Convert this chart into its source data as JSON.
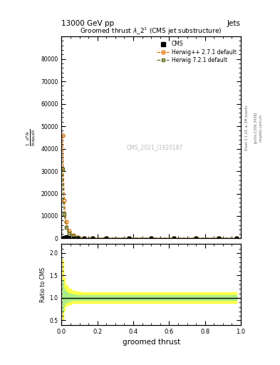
{
  "title": "13000 GeV pp",
  "right_title": "Jets",
  "plot_title": "Groomed thrust $\\lambda\\_2^1$ (CMS jet substructure)",
  "cms_watermark": "CMS_2021_I1920187",
  "rivet_label": "Rivet 3.1.10, ≥ 3M events",
  "arxiv_label": "[arXiv:1306.3436]",
  "mcplots_label": "mcplots.cern.ch",
  "xlabel": "groomed thrust",
  "ylabel_top": "$\\frac{1}{N}\\frac{d^2N}{dp_T\\,d\\lambda}$",
  "ylabel_ratio": "Ratio to CMS",
  "xlim": [
    0.0,
    1.0
  ],
  "ylim_main": [
    0,
    90000
  ],
  "ylim_ratio": [
    0.4,
    2.2
  ],
  "main_yticks": [
    0,
    10000,
    20000,
    30000,
    40000,
    50000,
    60000,
    70000,
    80000
  ],
  "ratio_yticks": [
    0.5,
    1.0,
    1.5,
    2.0
  ],
  "x_data": [
    0.005,
    0.015,
    0.025,
    0.04,
    0.065,
    0.09,
    0.125,
    0.175,
    0.25,
    0.375,
    0.5,
    0.625,
    0.75,
    0.875,
    0.975
  ],
  "herwig_pp_y": [
    46000,
    17000,
    7500,
    3200,
    1300,
    600,
    280,
    190,
    140,
    120,
    100,
    90,
    85,
    80,
    75
  ],
  "herwig72_y": [
    31000,
    11000,
    5000,
    2300,
    950,
    420,
    210,
    160,
    130,
    110,
    90,
    85,
    80,
    78,
    72
  ],
  "cms_y": [
    200,
    400,
    800,
    600,
    300,
    200,
    150,
    130,
    120,
    110,
    90,
    85,
    80,
    78,
    72
  ],
  "color_cms": "#000000",
  "color_herwig_pp": "#e07000",
  "color_herwig72": "#607020",
  "color_band_yellow": "#ffff44",
  "color_band_green": "#aaee88",
  "band_yellow_upper": [
    1.85,
    1.45,
    1.28,
    1.2,
    1.16,
    1.14,
    1.13,
    1.13,
    1.13,
    1.13,
    1.13,
    1.13,
    1.13,
    1.13,
    1.13
  ],
  "band_yellow_lower": [
    0.5,
    0.72,
    0.82,
    0.86,
    0.88,
    0.88,
    0.88,
    0.88,
    0.88,
    0.88,
    0.88,
    0.88,
    0.88,
    0.88,
    0.88
  ],
  "band_green_upper": [
    1.38,
    1.2,
    1.14,
    1.1,
    1.08,
    1.07,
    1.07,
    1.07,
    1.07,
    1.07,
    1.07,
    1.07,
    1.07,
    1.07,
    1.07
  ],
  "band_green_lower": [
    0.72,
    0.84,
    0.9,
    0.93,
    0.95,
    0.95,
    0.95,
    0.95,
    0.95,
    0.95,
    0.95,
    0.95,
    0.95,
    0.95,
    0.95
  ],
  "background_color": "#ffffff"
}
